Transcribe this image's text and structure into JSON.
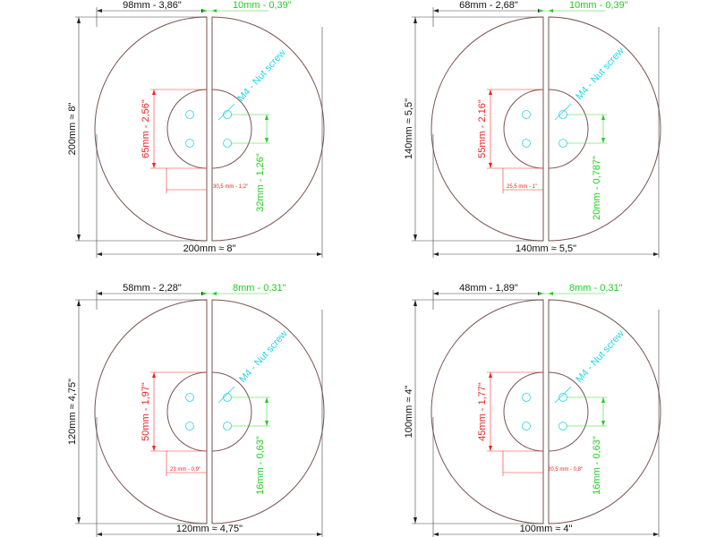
{
  "drawings": [
    {
      "id": "200",
      "top_width": "98mm - 3,86\"",
      "gap": "10mm - 0,39\"",
      "height": "200mm ≈ 8\"",
      "width": "200mm ≈ 8\"",
      "hub_height": "65mm - 2,56\"",
      "hub_offset": "30,5 mm - 1,2\"",
      "screw_spacing": "32mm - 1,26\"",
      "screw_label": "M4 - Nut screw"
    },
    {
      "id": "140",
      "top_width": "68mm - 2,68\"",
      "gap": "10mm - 0,39\"",
      "height": "140mm ≈ 5,5\"",
      "width": "140mm ≈ 5,5\"",
      "hub_height": "55mm - 2,16\"",
      "hub_offset": "25,5 mm - 1\"",
      "screw_spacing": "20mm - 0,787\"",
      "screw_label": "M4 - Nut screw"
    },
    {
      "id": "120",
      "top_width": "58mm - 2,28\"",
      "gap": "8mm - 0,31\"",
      "height": "120mm ≈ 4,75\"",
      "width": "120mm ≈ 4,75\"",
      "hub_height": "50mm - 1,97\"",
      "hub_offset": "23 mm - 0,9\"",
      "screw_spacing": "16mm - 0,63\"",
      "screw_label": "M4 - Nut screw"
    },
    {
      "id": "100",
      "top_width": "48mm - 1,89\"",
      "gap": "8mm - 0,31\"",
      "height": "100mm ≈ 4\"",
      "width": "100mm ≈ 4\"",
      "hub_height": "45mm - 1,77\"",
      "hub_offset": "20,5 mm - 0,8\"",
      "screw_spacing": "16mm - 0,63\"",
      "screw_label": "M4 - Nut screw"
    }
  ]
}
